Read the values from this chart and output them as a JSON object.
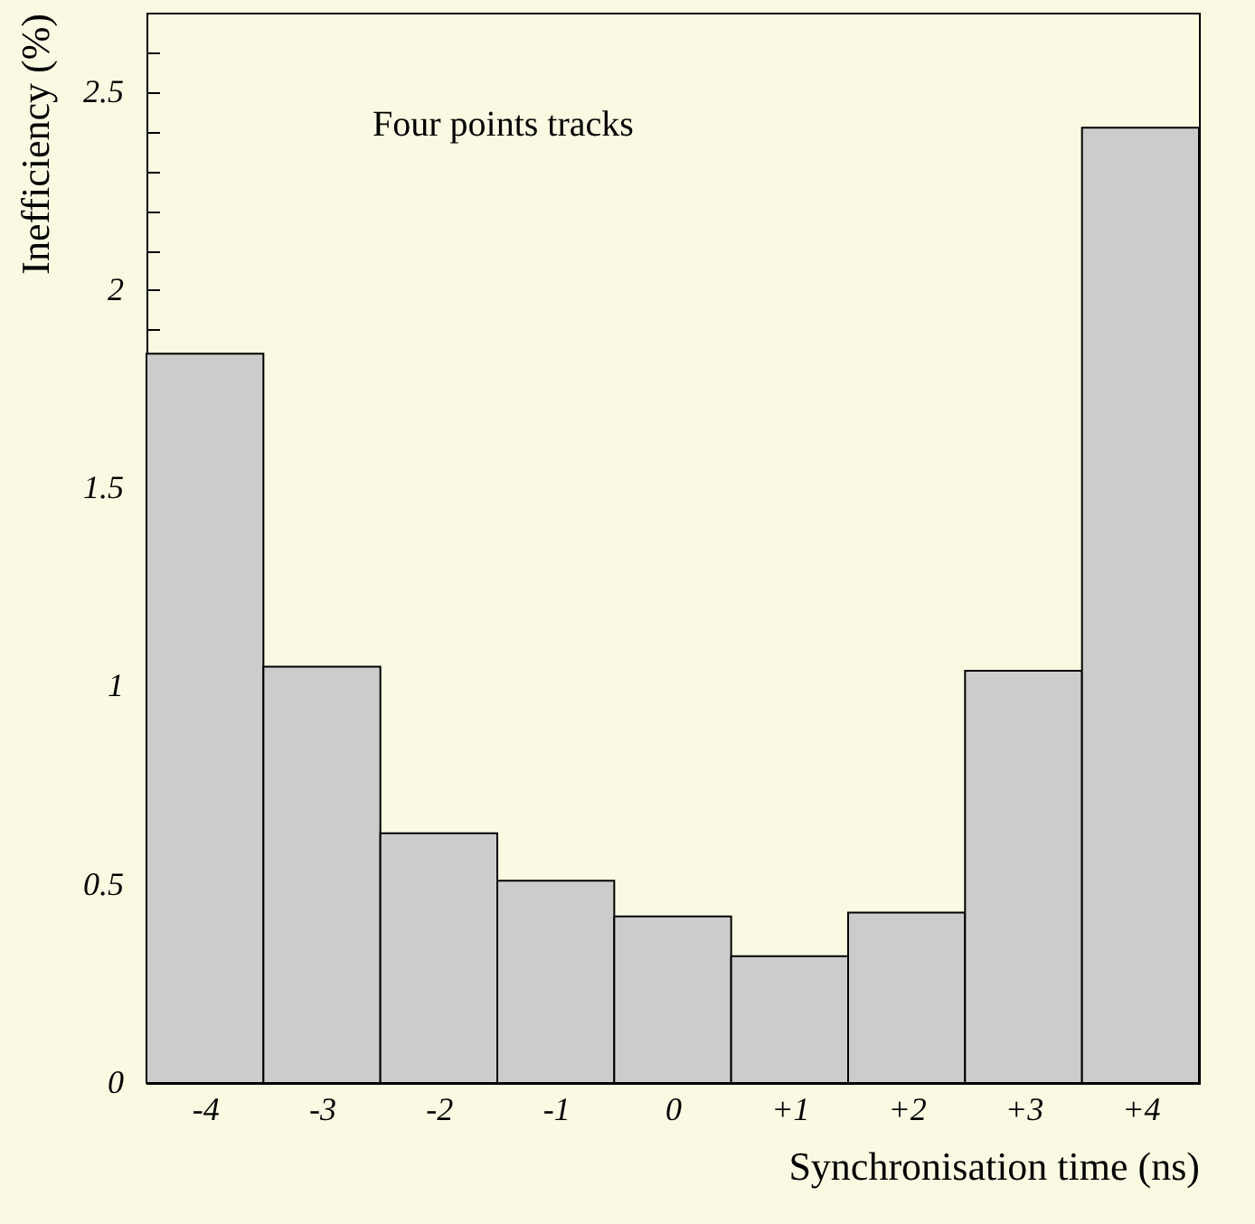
{
  "chart_data": {
    "type": "histogram",
    "xlabel": "Synchronisation time (ns)",
    "ylabel": "Inefficiency (%)",
    "annotations": [
      "Four points tracks"
    ],
    "bins": [
      -4.5,
      -3.5,
      -2.5,
      -1.5,
      -0.5,
      0.5,
      1.5,
      2.5,
      3.5,
      4.5
    ],
    "values": [
      1.84,
      1.05,
      0.63,
      0.51,
      0.42,
      0.32,
      0.43,
      1.04,
      2.41
    ],
    "color": "#cccccc",
    "xlim": [
      -4.5,
      4.5
    ],
    "xticks": [
      {
        "value": -4,
        "label": "-4"
      },
      {
        "value": -3,
        "label": "-3"
      },
      {
        "value": -2,
        "label": "-2"
      },
      {
        "value": -1,
        "label": "-1"
      },
      0,
      {
        "value": 1,
        "label": "+1"
      },
      {
        "value": 2,
        "label": "+2"
      },
      {
        "value": 3,
        "label": "+3"
      },
      {
        "value": 4,
        "label": "+4"
      }
    ],
    "ylim": [
      0,
      2.7
    ],
    "yticks": [
      0,
      {
        "value": 0.1,
        "label": null
      },
      {
        "value": 0.2,
        "label": null
      },
      {
        "value": 0.3,
        "label": null
      },
      {
        "value": 0.4,
        "label": null
      },
      0.5,
      {
        "value": 0.6,
        "label": null
      },
      {
        "value": 0.7,
        "label": null
      },
      {
        "value": 0.8,
        "label": null
      },
      {
        "value": 0.9,
        "label": null
      },
      1,
      {
        "value": 1.1,
        "label": null
      },
      {
        "value": 1.2,
        "label": null
      },
      {
        "value": 1.3,
        "label": null
      },
      {
        "value": 1.4,
        "label": null
      },
      1.5,
      {
        "value": 1.6,
        "label": null
      },
      {
        "value": 1.7,
        "label": null
      },
      {
        "value": 1.8,
        "label": null
      },
      {
        "value": 1.9,
        "label": null
      },
      2,
      {
        "value": 2.1,
        "label": null
      },
      {
        "value": 2.2,
        "label": null
      },
      {
        "value": 2.3,
        "label": null
      },
      {
        "value": 2.4,
        "label": null
      },
      2.5,
      {
        "value": 2.6,
        "label": null
      }
    ]
  }
}
